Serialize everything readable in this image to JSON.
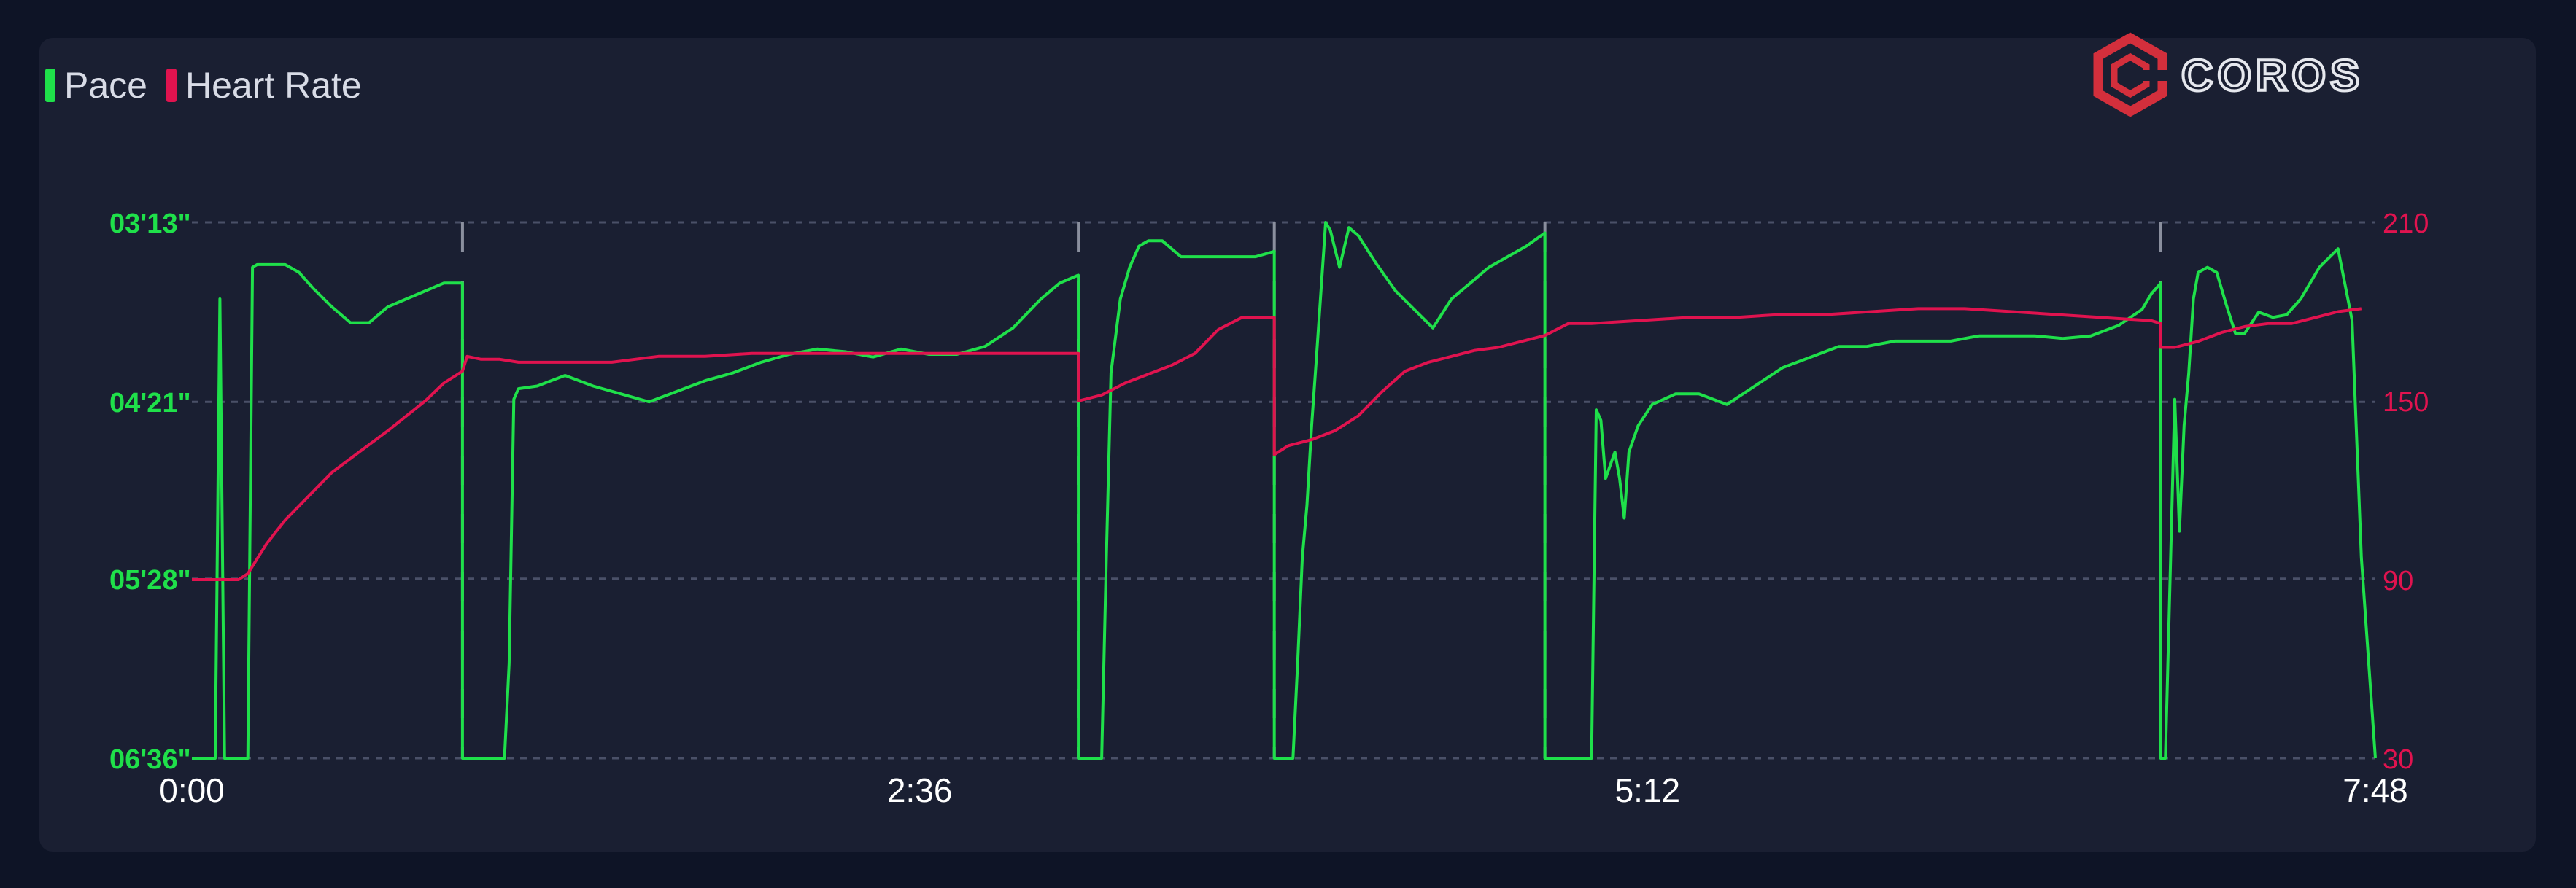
{
  "colors": {
    "pace": "#1fe04a",
    "heart_rate": "#e0134f",
    "grid": "#4a5068",
    "lap": "#8a8f9e",
    "text": "#d8dbe6",
    "background": "#1a1f32"
  },
  "legend": {
    "pace_label": "Pace",
    "heart_rate_label": "Heart Rate"
  },
  "logo": {
    "text": "COROS",
    "icon": "coros-hexagon-logo-icon"
  },
  "chart_data": {
    "type": "line",
    "x_unit_ticks": [
      "0:00",
      "2:36",
      "5:12",
      "7:48"
    ],
    "xlim": [
      0,
      468
    ],
    "laps_seconds": [
      58,
      190,
      232,
      290,
      422
    ],
    "y_left": {
      "label": "Pace",
      "ticks": [
        "03'13\"",
        "04'21\"",
        "05'28\"",
        "06'36\""
      ],
      "ticks_seconds_per_km": [
        193,
        261,
        328,
        396
      ],
      "ylim_seconds_per_km": [
        396,
        193
      ],
      "color": "#1fe04a"
    },
    "y_right": {
      "label": "Heart Rate",
      "ticks": [
        210,
        150,
        90,
        30
      ],
      "ylim": [
        30,
        210
      ],
      "color": "#e0134f"
    },
    "series": [
      {
        "name": "Pace",
        "axis": "left",
        "x": [
          0,
          2,
          5,
          6,
          7,
          9,
          12,
          13,
          14,
          17,
          20,
          23,
          26,
          30,
          34,
          38,
          42,
          46,
          50,
          54,
          58,
          58,
          59,
          60,
          62,
          65,
          67,
          68,
          69,
          70,
          74,
          80,
          86,
          92,
          98,
          104,
          110,
          116,
          122,
          128,
          134,
          140,
          146,
          152,
          158,
          164,
          170,
          176,
          182,
          186,
          190,
          190,
          191,
          195,
          196,
          197,
          199,
          201,
          203,
          205,
          208,
          212,
          216,
          220,
          224,
          228,
          232,
          232,
          233,
          236,
          237,
          238,
          239,
          240,
          241,
          243,
          244,
          245,
          246,
          248,
          250,
          254,
          258,
          262,
          266,
          270,
          274,
          278,
          282,
          286,
          290,
          290,
          291,
          299,
          300,
          300,
          301,
          302,
          303,
          305,
          306,
          307,
          308,
          310,
          313,
          318,
          323,
          329,
          335,
          341,
          347,
          353,
          359,
          365,
          371,
          377,
          383,
          389,
          395,
          401,
          407,
          413,
          418,
          420,
          422,
          422,
          423,
          425,
          426,
          427,
          428,
          429,
          430,
          432,
          434,
          436,
          438,
          440,
          443,
          446,
          449,
          452,
          456,
          460,
          463,
          465,
          468
        ],
        "y": [
          396,
          396,
          396,
          222,
          396,
          396,
          396,
          210,
          209,
          209,
          209,
          212,
          218,
          225,
          231,
          231,
          225,
          222,
          219,
          216,
          216,
          396,
          396,
          396,
          396,
          396,
          396,
          360,
          260,
          256,
          255,
          251,
          255,
          258,
          261,
          257,
          253,
          250,
          246,
          243,
          241,
          242,
          244,
          241,
          243,
          243,
          240,
          233,
          222,
          216,
          213,
          396,
          396,
          396,
          320,
          250,
          222,
          210,
          202,
          200,
          200,
          206,
          206,
          206,
          206,
          206,
          204,
          396,
          396,
          396,
          360,
          320,
          300,
          270,
          245,
          193,
          196,
          203,
          210,
          195,
          198,
          209,
          219,
          226,
          233,
          222,
          216,
          210,
          206,
          202,
          197,
          396,
          396,
          396,
          396,
          396,
          264,
          268,
          290,
          280,
          290,
          305,
          280,
          270,
          262,
          258,
          258,
          262,
          255,
          248,
          244,
          240,
          240,
          238,
          238,
          238,
          236,
          236,
          236,
          237,
          236,
          232,
          226,
          220,
          216,
          396,
          396,
          260,
          310,
          270,
          250,
          222,
          212,
          210,
          212,
          224,
          235,
          235,
          227,
          229,
          228,
          222,
          210,
          203,
          230,
          320,
          396
        ]
      },
      {
        "name": "Heart Rate",
        "axis": "right",
        "x": [
          0,
          10,
          12,
          16,
          20,
          25,
          30,
          36,
          42,
          46,
          50,
          54,
          58,
          59,
          62,
          66,
          70,
          75,
          80,
          90,
          100,
          110,
          120,
          130,
          140,
          150,
          160,
          170,
          180,
          190,
          190,
          195,
          200,
          205,
          210,
          215,
          220,
          225,
          228,
          232,
          232,
          235,
          240,
          245,
          250,
          255,
          260,
          265,
          270,
          275,
          280,
          285,
          290,
          290,
          295,
          300,
          310,
          320,
          330,
          340,
          350,
          360,
          370,
          380,
          390,
          400,
          410,
          420,
          422,
          422,
          425,
          430,
          435,
          440,
          445,
          450,
          455,
          460,
          465
        ],
        "y": [
          90,
          90,
          92,
          102,
          110,
          118,
          126,
          133,
          140,
          145,
          150,
          156,
          160,
          165,
          164,
          164,
          163,
          163,
          163,
          163,
          165,
          165,
          166,
          166,
          166,
          166,
          166,
          166,
          166,
          166,
          150,
          152,
          156,
          159,
          162,
          166,
          174,
          178,
          178,
          178,
          132,
          135,
          137,
          140,
          145,
          153,
          160,
          163,
          165,
          167,
          168,
          170,
          172,
          172,
          176,
          176,
          177,
          178,
          178,
          179,
          179,
          180,
          181,
          181,
          180,
          179,
          178,
          177,
          176,
          168,
          168,
          170,
          173,
          175,
          176,
          176,
          178,
          180,
          181
        ]
      }
    ]
  }
}
